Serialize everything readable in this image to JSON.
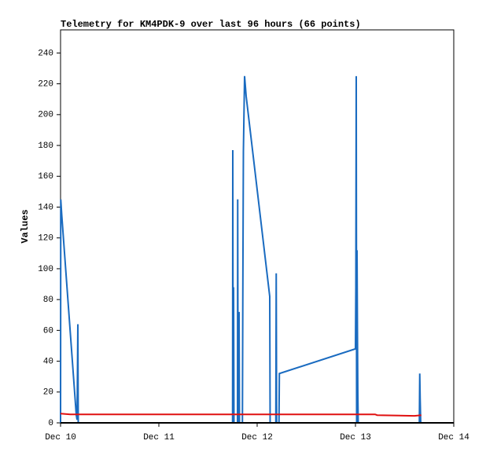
{
  "chart_data": {
    "type": "line",
    "title": "Telemetry for KM4PDK-9 over last 96 hours (66 points)",
    "ylabel": "Values",
    "xlim": [
      0,
      4
    ],
    "ylim": [
      0,
      255
    ],
    "xticks": [
      {
        "value": 0,
        "label": "Dec 10"
      },
      {
        "value": 1,
        "label": "Dec 11"
      },
      {
        "value": 2,
        "label": "Dec 12"
      },
      {
        "value": 3,
        "label": "Dec 13"
      },
      {
        "value": 4,
        "label": "Dec 14"
      }
    ],
    "yticks": [
      0,
      20,
      40,
      60,
      80,
      100,
      120,
      140,
      160,
      180,
      200,
      220,
      240
    ],
    "grid": false,
    "series": [
      {
        "color": "#1a6bc0",
        "x": [
          0,
          0.002,
          0.012,
          0.16,
          0.168,
          0.172,
          0.176,
          0.18,
          1.75,
          1.752,
          1.756,
          1.76,
          1.764,
          1.8,
          1.802,
          1.806,
          1.816,
          1.82,
          1.85,
          1.854,
          1.86,
          1.872,
          1.888,
          2.128,
          2.132,
          2.19,
          2.194,
          2.198,
          2.222,
          2.226,
          3.0,
          3.004,
          3.008,
          3.012,
          3.016,
          3.02,
          3.024,
          3.028,
          3.65,
          3.654,
          3.658,
          3.664
        ],
        "values": [
          0,
          145,
          135,
          5,
          2,
          32,
          64,
          0,
          0,
          177,
          0,
          88,
          0,
          0,
          145,
          0,
          72,
          0,
          0,
          80,
          176,
          225,
          212,
          82,
          0,
          0,
          97,
          0,
          0,
          32,
          48,
          88,
          225,
          0,
          112,
          60,
          20,
          0,
          0,
          32,
          16,
          0
        ]
      },
      {
        "color": "#e01010",
        "x": [
          0,
          0.1,
          0.2,
          3.2,
          3.22,
          3.6,
          3.67
        ],
        "values": [
          6,
          5.5,
          5.5,
          5.5,
          5,
          4.5,
          5
        ]
      }
    ]
  }
}
